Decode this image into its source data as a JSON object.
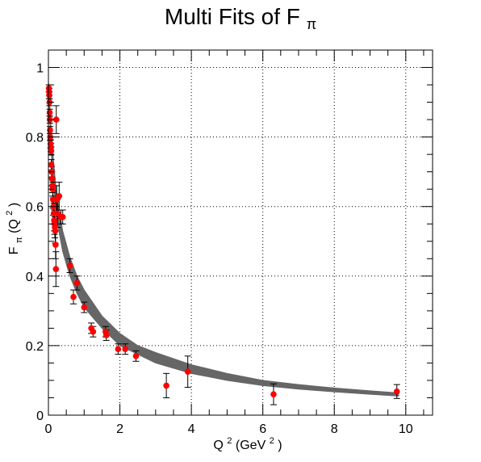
{
  "chart_data": {
    "type": "scatter",
    "title": {
      "main": "Multi Fits of F",
      "sub": "π"
    },
    "xlabel": {
      "pre": "Q",
      "sup": "2",
      "mid": " (GeV",
      "sup2": "2",
      "post": ")"
    },
    "ylabel": {
      "pre": "F",
      "sub": "π",
      "mid": "(Q",
      "sup": "2",
      "post": ")"
    },
    "xlim": [
      0,
      10.75
    ],
    "ylim": [
      0,
      1.05
    ],
    "x_ticks": [
      0,
      2,
      4,
      6,
      8,
      10
    ],
    "x_tick_labels": [
      "0",
      "2",
      "4",
      "6",
      "8",
      "10"
    ],
    "y_ticks": [
      0,
      0.2,
      0.4,
      0.6,
      0.8,
      1
    ],
    "y_tick_labels": [
      "0",
      "0.2",
      "0.4",
      "0.6",
      "0.8",
      "1"
    ],
    "grid": true,
    "legend": "none",
    "colors": {
      "points": "#ff0000",
      "fit_band": "#666666",
      "errorbars": "#000000",
      "axes": "#000000"
    },
    "fit_band": {
      "x": [
        0,
        0.1,
        0.2,
        0.3,
        0.4,
        0.6,
        0.8,
        1.0,
        1.5,
        2.0,
        2.5,
        3.0,
        4.0,
        5.0,
        6.0,
        7.0,
        8.0,
        9.0,
        9.8
      ],
      "y_low": [
        0.92,
        0.72,
        0.6,
        0.525,
        0.47,
        0.4,
        0.35,
        0.31,
        0.25,
        0.2,
        0.175,
        0.15,
        0.12,
        0.1,
        0.085,
        0.075,
        0.067,
        0.06,
        0.055
      ],
      "y_high": [
        0.96,
        0.78,
        0.665,
        0.59,
        0.53,
        0.455,
        0.4,
        0.36,
        0.285,
        0.235,
        0.2,
        0.18,
        0.145,
        0.12,
        0.1,
        0.088,
        0.078,
        0.07,
        0.064
      ]
    },
    "series": [
      {
        "x": [
          0.015,
          0.02,
          0.025,
          0.03,
          0.035,
          0.04,
          0.045,
          0.05,
          0.06,
          0.07,
          0.075,
          0.08,
          0.09,
          0.1,
          0.11,
          0.12,
          0.13,
          0.14,
          0.15,
          0.16,
          0.17,
          0.18,
          0.19,
          0.2,
          0.21,
          0.22,
          0.23,
          0.25,
          0.3,
          0.35,
          0.4,
          0.6,
          0.7,
          0.8,
          1.0,
          1.2,
          1.25,
          1.6,
          1.62,
          1.95,
          2.15,
          2.45,
          3.3,
          3.9,
          6.3,
          9.75
        ],
        "y": [
          0.94,
          0.93,
          0.92,
          0.9,
          0.87,
          0.85,
          0.82,
          0.8,
          0.78,
          0.77,
          0.76,
          0.72,
          0.7,
          0.68,
          0.66,
          0.65,
          0.62,
          0.6,
          0.58,
          0.56,
          0.55,
          0.54,
          0.53,
          0.49,
          0.42,
          0.85,
          0.62,
          0.58,
          0.63,
          0.57,
          0.57,
          0.43,
          0.34,
          0.38,
          0.31,
          0.25,
          0.24,
          0.24,
          0.23,
          0.19,
          0.19,
          0.17,
          0.085,
          0.125,
          0.06,
          0.068
        ],
        "err": [
          0.01,
          0.01,
          0.01,
          0.01,
          0.01,
          0.01,
          0.01,
          0.01,
          0.012,
          0.012,
          0.012,
          0.015,
          0.015,
          0.02,
          0.02,
          0.02,
          0.025,
          0.025,
          0.03,
          0.03,
          0.03,
          0.03,
          0.035,
          0.04,
          0.05,
          0.04,
          0.04,
          0.04,
          0.04,
          0.02,
          0.02,
          0.02,
          0.02,
          0.02,
          0.015,
          0.015,
          0.015,
          0.015,
          0.015,
          0.015,
          0.015,
          0.015,
          0.035,
          0.045,
          0.03,
          0.02
        ]
      }
    ]
  }
}
